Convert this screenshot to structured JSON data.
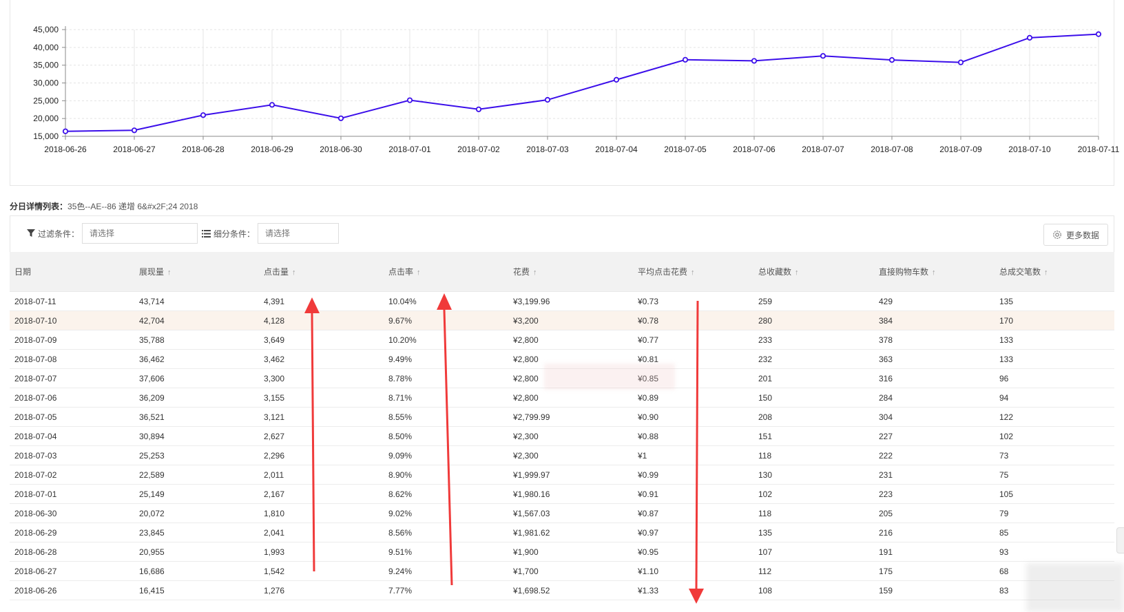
{
  "chart_data": {
    "type": "line",
    "x": [
      "2018-06-26",
      "2018-06-27",
      "2018-06-28",
      "2018-06-29",
      "2018-06-30",
      "2018-07-01",
      "2018-07-02",
      "2018-07-03",
      "2018-07-04",
      "2018-07-05",
      "2018-07-06",
      "2018-07-07",
      "2018-07-08",
      "2018-07-09",
      "2018-07-10",
      "2018-07-11"
    ],
    "values": [
      16415,
      16686,
      20955,
      23845,
      20072,
      25149,
      22589,
      25253,
      30894,
      36521,
      36209,
      37606,
      36462,
      35788,
      42704,
      43714
    ],
    "ylim": [
      15000,
      45000
    ],
    "yticks": [
      "15,000",
      "20,000",
      "25,000",
      "30,000",
      "35,000",
      "40,000",
      "45,000"
    ],
    "grid": true,
    "line_color": "#3b0eea"
  },
  "table_title": {
    "label": "分日详情列表：",
    "value": "35色--AE--86 递增 6&#x2F;24 2018"
  },
  "toolbar": {
    "filter_label": "过滤条件：",
    "filter_placeholder": "请选择",
    "segment_label": "细分条件：",
    "segment_placeholder": "请选择",
    "more_button": "更多数据"
  },
  "table": {
    "columns": [
      "日期",
      "展现量",
      "点击量",
      "点击率",
      "花费",
      "平均点击花费",
      "总收藏数",
      "直接购物车数",
      "总成交笔数"
    ],
    "rows": [
      [
        "2018-07-11",
        "43,714",
        "4,391",
        "10.04%",
        "¥3,199.96",
        "¥0.73",
        "259",
        "429",
        "135"
      ],
      [
        "2018-07-10",
        "42,704",
        "4,128",
        "9.67%",
        "¥3,200",
        "¥0.78",
        "280",
        "384",
        "170"
      ],
      [
        "2018-07-09",
        "35,788",
        "3,649",
        "10.20%",
        "¥2,800",
        "¥0.77",
        "233",
        "378",
        "133"
      ],
      [
        "2018-07-08",
        "36,462",
        "3,462",
        "9.49%",
        "¥2,800",
        "¥0.81",
        "232",
        "363",
        "133"
      ],
      [
        "2018-07-07",
        "37,606",
        "3,300",
        "8.78%",
        "¥2,800",
        "¥0.85",
        "201",
        "316",
        "96"
      ],
      [
        "2018-07-06",
        "36,209",
        "3,155",
        "8.71%",
        "¥2,800",
        "¥0.89",
        "150",
        "284",
        "94"
      ],
      [
        "2018-07-05",
        "36,521",
        "3,121",
        "8.55%",
        "¥2,799.99",
        "¥0.90",
        "208",
        "304",
        "122"
      ],
      [
        "2018-07-04",
        "30,894",
        "2,627",
        "8.50%",
        "¥2,300",
        "¥0.88",
        "151",
        "227",
        "102"
      ],
      [
        "2018-07-03",
        "25,253",
        "2,296",
        "9.09%",
        "¥2,300",
        "¥1",
        "118",
        "222",
        "73"
      ],
      [
        "2018-07-02",
        "22,589",
        "2,011",
        "8.90%",
        "¥1,999.97",
        "¥0.99",
        "130",
        "231",
        "75"
      ],
      [
        "2018-07-01",
        "25,149",
        "2,167",
        "8.62%",
        "¥1,980.16",
        "¥0.91",
        "102",
        "223",
        "105"
      ],
      [
        "2018-06-30",
        "20,072",
        "1,810",
        "9.02%",
        "¥1,567.03",
        "¥0.87",
        "118",
        "205",
        "79"
      ],
      [
        "2018-06-29",
        "23,845",
        "2,041",
        "8.56%",
        "¥1,981.62",
        "¥0.97",
        "135",
        "216",
        "85"
      ],
      [
        "2018-06-28",
        "20,955",
        "1,993",
        "9.51%",
        "¥1,900",
        "¥0.95",
        "107",
        "191",
        "93"
      ],
      [
        "2018-06-27",
        "16,686",
        "1,542",
        "9.24%",
        "¥1,700",
        "¥1.10",
        "112",
        "175",
        "68"
      ],
      [
        "2018-06-26",
        "16,415",
        "1,276",
        "7.77%",
        "¥1,698.52",
        "¥1.33",
        "108",
        "159",
        "83"
      ]
    ],
    "highlight_row_index": 1
  },
  "annotations": {
    "arrow_color": "#f03a3a"
  }
}
